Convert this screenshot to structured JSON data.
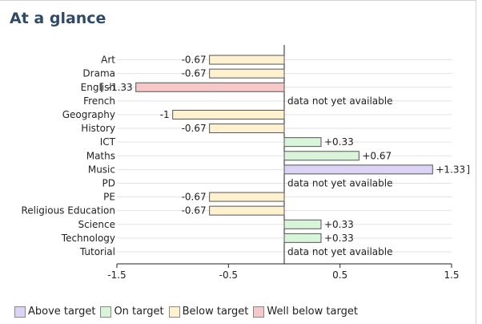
{
  "page": {
    "title": "At a glance"
  },
  "chart_data": {
    "type": "bar",
    "orientation": "horizontal",
    "categories": [
      "Art",
      "Drama",
      "English",
      "French",
      "Geography",
      "History",
      "ICT",
      "Maths",
      "Music",
      "PD",
      "PE",
      "Religious Education",
      "Science",
      "Technology",
      "Tutorial"
    ],
    "values": [
      -0.67,
      -0.67,
      -1.33,
      null,
      -1,
      -0.67,
      0.33,
      0.67,
      1.33,
      null,
      -0.67,
      -0.67,
      0.33,
      0.33,
      null
    ],
    "value_labels": [
      "-0.67",
      "-0.67",
      "-1.33",
      "data not yet available",
      "-1",
      "-0.67",
      "+0.33",
      "+0.67",
      "+1.33",
      "data not yet available",
      "-0.67",
      "-0.67",
      "+0.33",
      "+0.33",
      "data not yet available"
    ],
    "status": [
      "below",
      "below",
      "well-below",
      "none",
      "below",
      "below",
      "on",
      "on",
      "above",
      "none",
      "below",
      "below",
      "on",
      "on",
      "none"
    ],
    "xlim": [
      -1.5,
      1.5
    ],
    "x_ticks": [
      "-1.5",
      "-0.5",
      "0.5",
      "1.5"
    ],
    "x_tick_values": [
      -1.5,
      -0.5,
      0.5,
      1.5
    ],
    "grid": true,
    "legend_position": "bottom",
    "legend": [
      {
        "key": "above",
        "label": "Above target",
        "color": "#dcd3f5"
      },
      {
        "key": "on",
        "label": "On target",
        "color": "#d9f5d9"
      },
      {
        "key": "below",
        "label": "Below target",
        "color": "#fdf1cf"
      },
      {
        "key": "well-below",
        "label": "Well below target",
        "color": "#f7c8c8"
      }
    ]
  }
}
